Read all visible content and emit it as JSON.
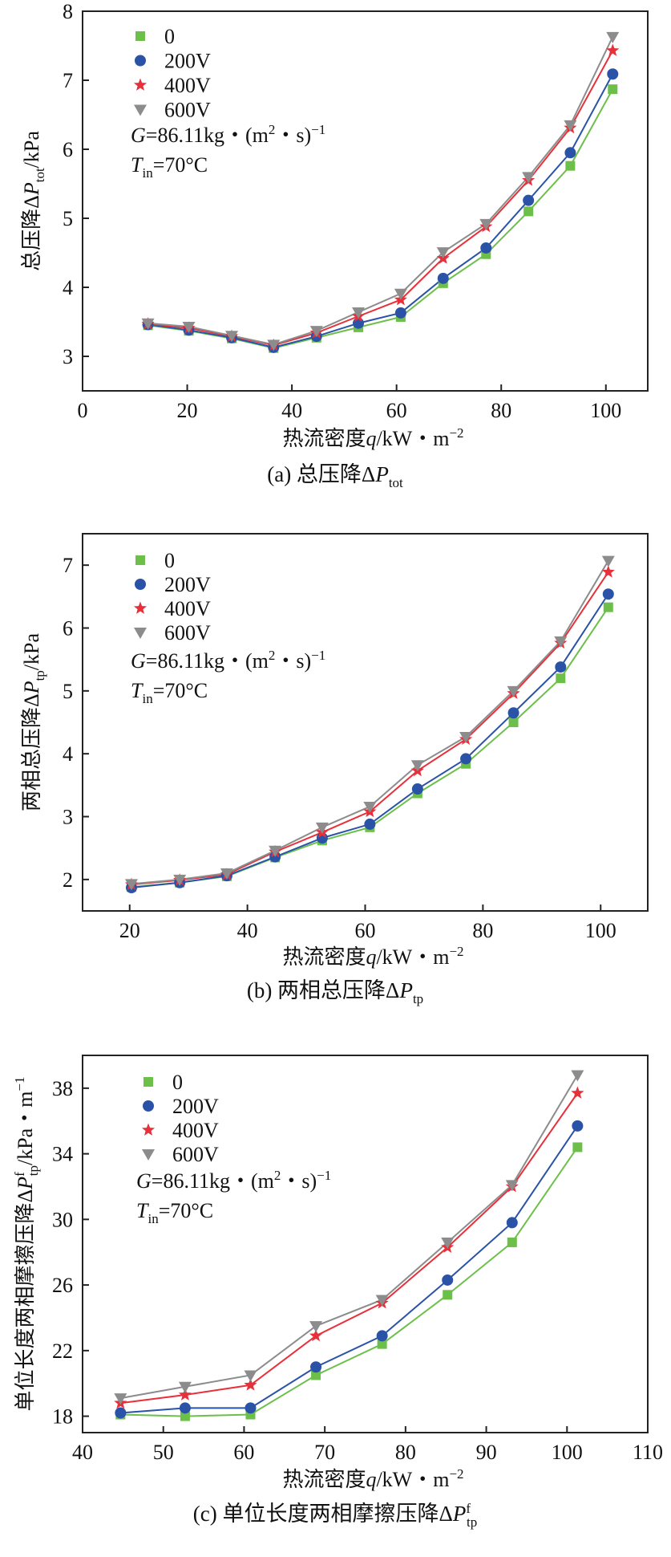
{
  "colors": {
    "s0": "#6cc04a",
    "s200": "#2a53a8",
    "s400": "#e8303a",
    "s600": "#8c8c8c"
  },
  "panels": [
    {
      "id": "a",
      "caption_prefix": "(a) 总压降Δ",
      "caption_italic": "P",
      "caption_sub": "tot",
      "ylabel_prefix": "总压降Δ",
      "ylabel_italic": "P",
      "ylabel_sub": "tot",
      "ylabel_suffix": "/kPa",
      "xlabel_prefix": "热流密度",
      "xlabel_italic": "q",
      "xlabel_suffix": "/kW・m",
      "xlabel_sup": "−2",
      "annot_G_italic": "G",
      "annot_G_text": "=86.11kg・(m",
      "annot_G_sup1": "2",
      "annot_G_text2": "・s)",
      "annot_G_sup2": "−1",
      "annot_T_italic": "T",
      "annot_T_sub": "in",
      "annot_T_text": "=70°C"
    },
    {
      "id": "b",
      "caption_prefix": "(b) 两相总压降Δ",
      "caption_italic": "P",
      "caption_sub": "tp",
      "ylabel_prefix": "两相总压降Δ",
      "ylabel_italic": "P",
      "ylabel_sub": "tp",
      "ylabel_suffix": "/kPa",
      "xlabel_prefix": "热流密度",
      "xlabel_italic": "q",
      "xlabel_suffix": "/kW・m",
      "xlabel_sup": "−2",
      "annot_G_italic": "G",
      "annot_G_text": "=86.11kg・(m",
      "annot_G_sup1": "2",
      "annot_G_text2": "・s)",
      "annot_G_sup2": "−1",
      "annot_T_italic": "T",
      "annot_T_sub": "in",
      "annot_T_text": "=70°C"
    },
    {
      "id": "c",
      "caption_prefix": "(c) 单位长度两相摩擦压降Δ",
      "caption_italic": "P",
      "caption_sub": "tp",
      "caption_sup": "f",
      "ylabel_prefix": "单位长度两相摩擦压降Δ",
      "ylabel_italic": "P",
      "ylabel_sub": "tp",
      "ylabel_sup": "f",
      "ylabel_suffix": "/kPa・m",
      "ylabel_sup2": "−1",
      "xlabel_prefix": "热流密度",
      "xlabel_italic": "q",
      "xlabel_suffix": "/kW・m",
      "xlabel_sup": "−2",
      "annot_G_italic": "G",
      "annot_G_text": "=86.11kg・(m",
      "annot_G_sup1": "2",
      "annot_G_text2": "・s)",
      "annot_G_sup2": "−1",
      "annot_T_italic": "T",
      "annot_T_sub": "in",
      "annot_T_text": "=70°C"
    }
  ],
  "chart_data": [
    {
      "type": "line",
      "title": "(a) 总压降ΔPtot",
      "xlabel": "热流密度q/kW・m−2",
      "ylabel": "总压降ΔPtot/kPa",
      "xlim": [
        0,
        108
      ],
      "ylim": [
        2.5,
        8
      ],
      "xticks": [
        0,
        20,
        40,
        60,
        80,
        100
      ],
      "yticks": [
        3,
        4,
        5,
        6,
        7,
        8
      ],
      "legend_position": "top-left",
      "x": [
        12.5,
        20.3,
        28.5,
        36.5,
        44.7,
        52.7,
        60.8,
        68.9,
        77.1,
        85.2,
        93.2,
        101.3
      ],
      "series": [
        {
          "name": "0",
          "marker": "square",
          "color_key": "s0",
          "values": [
            3.45,
            3.37,
            3.26,
            3.12,
            3.27,
            3.42,
            3.57,
            4.06,
            4.48,
            5.1,
            5.76,
            6.87
          ]
        },
        {
          "name": "200V",
          "marker": "circle",
          "color_key": "s200",
          "values": [
            3.46,
            3.38,
            3.27,
            3.13,
            3.29,
            3.48,
            3.63,
            4.13,
            4.57,
            5.26,
            5.95,
            7.09
          ]
        },
        {
          "name": "400V",
          "marker": "star",
          "color_key": "s400",
          "values": [
            3.47,
            3.41,
            3.29,
            3.16,
            3.34,
            3.58,
            3.82,
            4.42,
            4.88,
            5.55,
            6.31,
            7.43
          ]
        },
        {
          "name": "600V",
          "marker": "triangle-down",
          "color_key": "s600",
          "values": [
            3.48,
            3.43,
            3.3,
            3.17,
            3.37,
            3.64,
            3.91,
            4.51,
            4.92,
            5.6,
            6.35,
            7.63
          ]
        }
      ]
    },
    {
      "type": "line",
      "title": "(b) 两相总压降ΔPtp",
      "xlabel": "热流密度q/kW・m−2",
      "ylabel": "两相总压降ΔPtp/kPa",
      "xlim": [
        12,
        108
      ],
      "ylim": [
        1.5,
        7.5
      ],
      "xticks": [
        20,
        40,
        60,
        80,
        100
      ],
      "yticks": [
        2,
        3,
        4,
        5,
        6,
        7
      ],
      "legend_position": "top-left",
      "x": [
        20.3,
        28.5,
        36.5,
        44.7,
        52.7,
        60.8,
        68.9,
        77.1,
        85.2,
        93.2,
        101.3
      ],
      "series": [
        {
          "name": "0",
          "marker": "square",
          "color_key": "s0",
          "values": [
            1.88,
            1.95,
            2.05,
            2.35,
            2.62,
            2.83,
            3.37,
            3.84,
            4.5,
            5.2,
            6.33
          ]
        },
        {
          "name": "200V",
          "marker": "circle",
          "color_key": "s200",
          "values": [
            1.87,
            1.95,
            2.06,
            2.36,
            2.66,
            2.88,
            3.44,
            3.92,
            4.65,
            5.38,
            6.54
          ]
        },
        {
          "name": "400V",
          "marker": "star",
          "color_key": "s400",
          "values": [
            1.92,
            1.99,
            2.08,
            2.44,
            2.75,
            3.08,
            3.73,
            4.23,
            4.96,
            5.76,
            6.89
          ]
        },
        {
          "name": "600V",
          "marker": "triangle-down",
          "color_key": "s600",
          "values": [
            1.93,
            2.0,
            2.1,
            2.46,
            2.83,
            3.16,
            3.82,
            4.27,
            5.0,
            5.79,
            7.07
          ]
        }
      ]
    },
    {
      "type": "line",
      "title": "(c) 单位长度两相摩擦压降ΔPftp",
      "xlabel": "热流密度q/kW・m−2",
      "ylabel": "单位长度两相摩擦压降ΔPftp/kPa・m−1",
      "xlim": [
        40,
        110
      ],
      "ylim": [
        17,
        40
      ],
      "xticks": [
        40,
        50,
        60,
        70,
        80,
        90,
        100,
        110
      ],
      "yticks": [
        18,
        22,
        26,
        30,
        34,
        38
      ],
      "legend_position": "top-left",
      "x": [
        44.7,
        52.7,
        60.8,
        68.9,
        77.1,
        85.2,
        93.2,
        101.3
      ],
      "series": [
        {
          "name": "0",
          "marker": "square",
          "color_key": "s0",
          "values": [
            18.1,
            18.0,
            18.1,
            20.5,
            22.4,
            25.4,
            28.6,
            34.4
          ]
        },
        {
          "name": "200V",
          "marker": "circle",
          "color_key": "s200",
          "values": [
            18.2,
            18.5,
            18.5,
            21.0,
            22.9,
            26.3,
            29.8,
            35.7
          ]
        },
        {
          "name": "400V",
          "marker": "star",
          "color_key": "s400",
          "values": [
            18.8,
            19.3,
            19.9,
            22.9,
            24.9,
            28.3,
            32.0,
            37.7
          ]
        },
        {
          "name": "600V",
          "marker": "triangle-down",
          "color_key": "s600",
          "values": [
            19.1,
            19.8,
            20.5,
            23.5,
            25.1,
            28.6,
            32.1,
            38.8
          ]
        }
      ]
    }
  ]
}
